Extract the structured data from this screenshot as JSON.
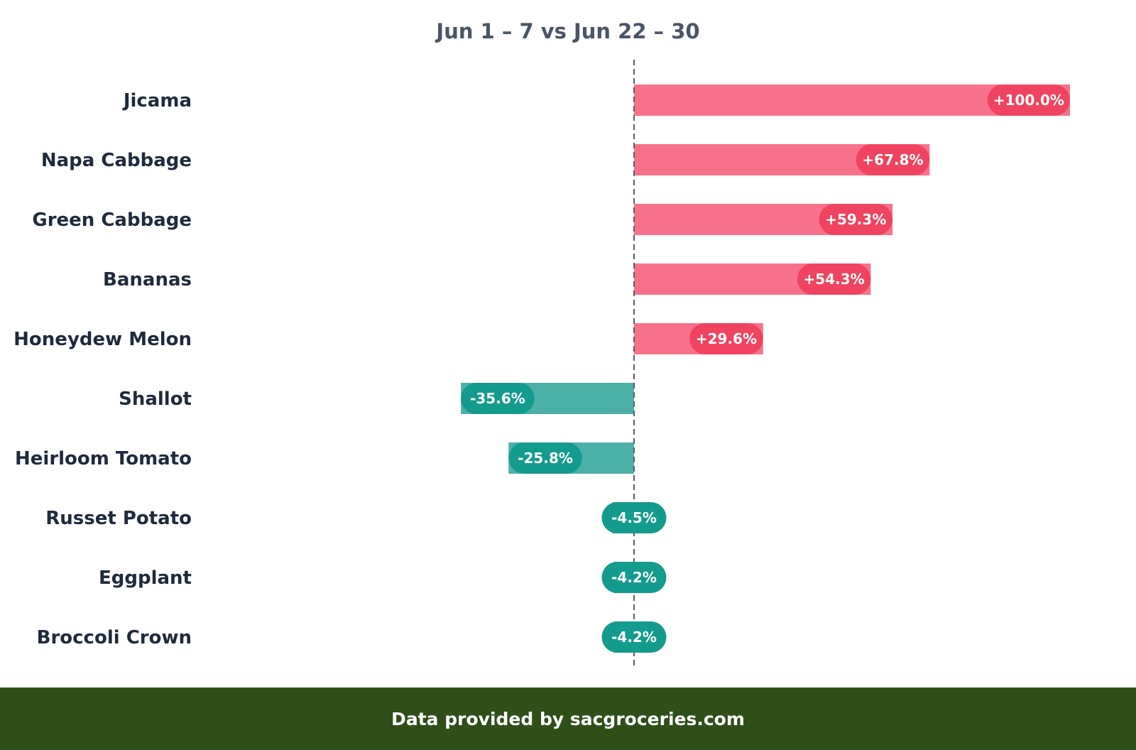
{
  "chart_data": {
    "type": "bar",
    "orientation": "horizontal",
    "title": "Jun 1 – 7 vs Jun 22 – 30",
    "categories": [
      "Jicama",
      "Napa Cabbage",
      "Green Cabbage",
      "Bananas",
      "Honeydew Melon",
      "Shallot",
      "Heirloom Tomato",
      "Russet Potato",
      "Eggplant",
      "Broccoli Crown"
    ],
    "values": [
      100.0,
      67.8,
      59.3,
      54.3,
      29.6,
      -35.6,
      -25.8,
      -4.5,
      -4.2,
      -4.2
    ],
    "value_labels": [
      "+100.0%",
      "+67.8%",
      "+59.3%",
      "+54.3%",
      "+29.6%",
      "-35.6%",
      "-25.8%",
      "-4.5%",
      "-4.2%",
      "-4.2%"
    ],
    "unit": "%",
    "xlim": [
      -145,
      112
    ],
    "zero_line": "dashed",
    "grid": false,
    "legend": "none",
    "colors": {
      "positive_bar": "#f7718a",
      "positive_label": "#f0435f",
      "negative_bar": "#4cb0a8",
      "negative_label": "#139b8e",
      "title": "#4a5565",
      "category": "#1f2a3c",
      "zero_line": "#555e6b"
    }
  },
  "footer": {
    "text": "Data provided by sacgroceries.com",
    "background": "#2e4f18"
  }
}
